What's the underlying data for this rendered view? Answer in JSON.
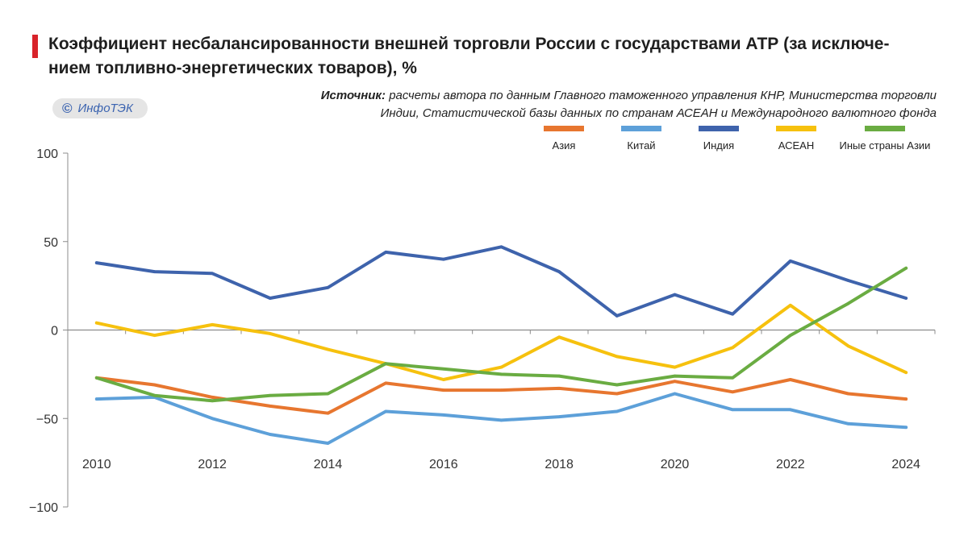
{
  "logo": {
    "symbol": "©",
    "text": "ИнфоТЭК"
  },
  "colors": {
    "accent": "#D8232A",
    "axis": "#8C8C8C",
    "logo_text": "#3C64B0"
  },
  "chart_data": {
    "type": "line",
    "title_lines": [
      "Коэффициент несбалансированности внешней торговли России с государствами АТР (за исключе-",
      "нием топливно-энергетических товаров), %"
    ],
    "source": {
      "label": "Источник:",
      "lines": [
        "расчеты автора по данным Главного таможенного управления КНР, Министерства торговли",
        "Индии, Статистической базы данных по странам АСЕАН и Международного валютного фонда"
      ]
    },
    "xlabel": "",
    "ylabel": "",
    "x": [
      2010,
      2011,
      2012,
      2013,
      2014,
      2015,
      2016,
      2017,
      2018,
      2019,
      2020,
      2021,
      2022,
      2023,
      2024
    ],
    "x_tick_labels": [
      "2010",
      "2012",
      "2014",
      "2016",
      "2018",
      "2020",
      "2022",
      "2024"
    ],
    "y_ticks": [
      100,
      50,
      0,
      -50,
      -100
    ],
    "y_tick_labels": [
      "100",
      "50",
      "0",
      "−50",
      "−100"
    ],
    "ylim": [
      -100,
      100
    ],
    "grid": false,
    "legend_position": "top-right",
    "series": [
      {
        "name": "Азия",
        "color": "#E7762F",
        "values": [
          -27,
          -31,
          -38,
          -43,
          -47,
          -30,
          -34,
          -34,
          -33,
          -36,
          -29,
          -35,
          -28,
          -36,
          -39
        ]
      },
      {
        "name": "Китай",
        "color": "#5DA0D9",
        "values": [
          -39,
          -38,
          -50,
          -59,
          -64,
          -46,
          -48,
          -51,
          -49,
          -46,
          -36,
          -45,
          -45,
          -53,
          -55
        ]
      },
      {
        "name": "Индия",
        "color": "#3E63AC",
        "values": [
          38,
          33,
          32,
          18,
          24,
          44,
          40,
          47,
          33,
          8,
          20,
          9,
          39,
          28,
          18
        ]
      },
      {
        "name": "АСЕАН",
        "color": "#F6C10E",
        "values": [
          4,
          -3,
          3,
          -2,
          -11,
          -19,
          -28,
          -21,
          -4,
          -15,
          -21,
          -10,
          14,
          -9,
          -24
        ]
      },
      {
        "name": "Иные страны Азии",
        "color": "#6AAC42",
        "values": [
          -27,
          -37,
          -40,
          -37,
          -36,
          -19,
          -22,
          -25,
          -26,
          -31,
          -26,
          -27,
          -3,
          15,
          35
        ]
      }
    ]
  }
}
